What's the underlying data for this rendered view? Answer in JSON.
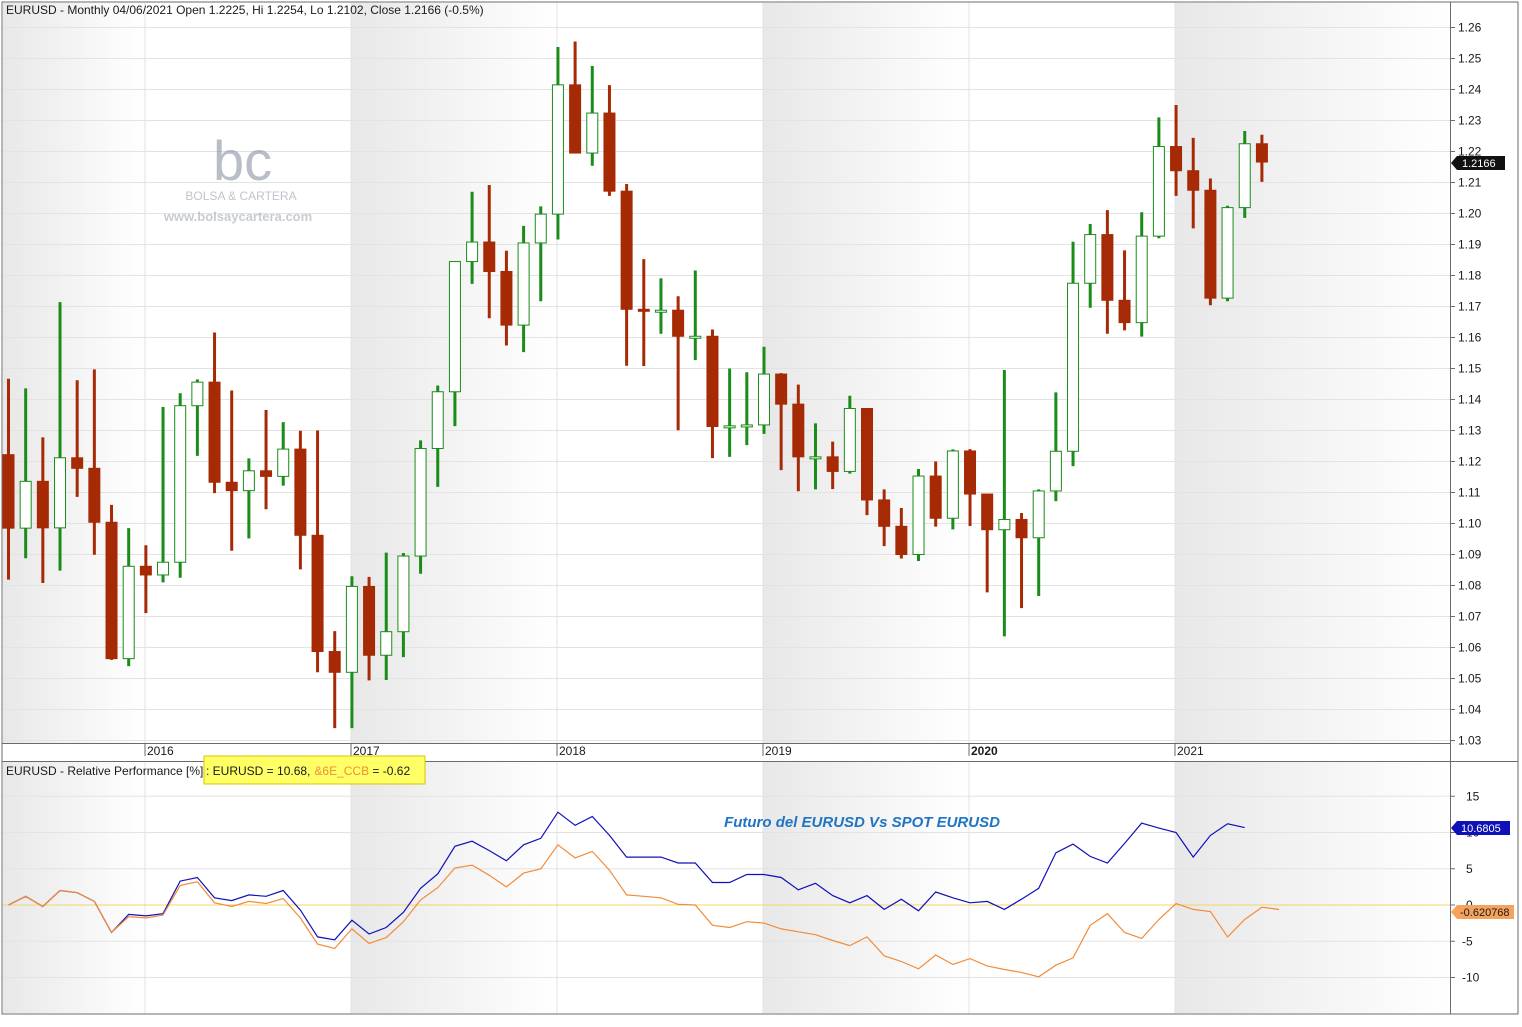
{
  "header": {
    "symbol": "EURUSD",
    "info_text": "EURUSD - Monthly 04/06/2021 Open 1.2225, Hi 1.2254, Lo 1.2102, Close 1.2166 (-0.5%)"
  },
  "watermark": {
    "logo_text": "bc",
    "brand": "BOLSA & CARTERA",
    "url": "www.bolsaycartera.com"
  },
  "colors": {
    "up_body": "#ffffff",
    "up_wick": "#1a8c1a",
    "down_body": "#a52a05",
    "series1": "#1010b8",
    "series2": "#f28c3a",
    "zero_line": "#f4d468",
    "legend_bg": "#ffff66"
  },
  "price_tag": "1.2166",
  "lower_panel": {
    "title": "EURUSD - Relative Performance [%]",
    "legend_prefix": ": EURUSD = 10.68,",
    "legend_item2": "&6E_CCB",
    "legend_suffix": " = -0.62",
    "annotation": "Futuro del EURUSD Vs SPOT EURUSD",
    "tag1": "10.6805",
    "tag2": "-0.620768"
  },
  "chart_data": [
    {
      "type": "candlestick",
      "title": "EURUSD - Monthly 04/06/2021 Open 1.2225, Hi 1.2254, Lo 1.2102, Close 1.2166 (-0.5%)",
      "x_labels": [
        "2016",
        "2017",
        "2018",
        "2019",
        "2020",
        "2021"
      ],
      "y_ticks": [
        "1.26",
        "1.25",
        "1.24",
        "1.23",
        "1.22",
        "1.21",
        "1.20",
        "1.19",
        "1.18",
        "1.17",
        "1.16",
        "1.15",
        "1.14",
        "1.13",
        "1.12",
        "1.11",
        "1.10",
        "1.09",
        "1.08",
        "1.07",
        "1.06",
        "1.05",
        "1.04",
        "1.03"
      ],
      "ylim": [
        1.026,
        1.263
      ],
      "x_start": "2015-04",
      "grid": true,
      "candles": [
        {
          "o": 1.1222,
          "h": 1.1467,
          "l": 1.0819,
          "c": 1.0985
        },
        {
          "o": 1.0985,
          "h": 1.1436,
          "l": 1.0888,
          "c": 1.1136
        },
        {
          "o": 1.1136,
          "h": 1.1278,
          "l": 1.0808,
          "c": 1.0986
        },
        {
          "o": 1.0986,
          "h": 1.1714,
          "l": 1.0848,
          "c": 1.1212
        },
        {
          "o": 1.1212,
          "h": 1.1462,
          "l": 1.1086,
          "c": 1.1178
        },
        {
          "o": 1.1178,
          "h": 1.1497,
          "l": 1.0899,
          "c": 1.1004
        },
        {
          "o": 1.1004,
          "h": 1.106,
          "l": 1.056,
          "c": 1.0564
        },
        {
          "o": 1.0564,
          "h": 1.0985,
          "l": 1.054,
          "c": 1.0862
        },
        {
          "o": 1.0862,
          "h": 1.093,
          "l": 1.0711,
          "c": 1.0834
        },
        {
          "o": 1.0834,
          "h": 1.1376,
          "l": 1.081,
          "c": 1.0875
        },
        {
          "o": 1.0875,
          "h": 1.142,
          "l": 1.0825,
          "c": 1.138
        },
        {
          "o": 1.138,
          "h": 1.1465,
          "l": 1.1218,
          "c": 1.1456
        },
        {
          "o": 1.1456,
          "h": 1.1616,
          "l": 1.1098,
          "c": 1.1133
        },
        {
          "o": 1.1133,
          "h": 1.1429,
          "l": 1.0912,
          "c": 1.1106
        },
        {
          "o": 1.1106,
          "h": 1.121,
          "l": 1.0952,
          "c": 1.117
        },
        {
          "o": 1.117,
          "h": 1.1366,
          "l": 1.1046,
          "c": 1.1152
        },
        {
          "o": 1.1152,
          "h": 1.1327,
          "l": 1.1122,
          "c": 1.124
        },
        {
          "o": 1.124,
          "h": 1.1299,
          "l": 1.0852,
          "c": 1.0962
        },
        {
          "o": 1.0962,
          "h": 1.13,
          "l": 1.052,
          "c": 1.0587
        },
        {
          "o": 1.0587,
          "h": 1.0653,
          "l": 1.034,
          "c": 1.052
        },
        {
          "o": 1.052,
          "h": 1.083,
          "l": 1.034,
          "c": 1.0797
        },
        {
          "o": 1.0797,
          "h": 1.0828,
          "l": 1.0494,
          "c": 1.0575
        },
        {
          "o": 1.0575,
          "h": 1.0906,
          "l": 1.0495,
          "c": 1.0651
        },
        {
          "o": 1.0651,
          "h": 1.0905,
          "l": 1.0569,
          "c": 1.0895
        },
        {
          "o": 1.0895,
          "h": 1.1268,
          "l": 1.0838,
          "c": 1.1242
        },
        {
          "o": 1.1242,
          "h": 1.1445,
          "l": 1.1118,
          "c": 1.1425
        },
        {
          "o": 1.1425,
          "h": 1.1829,
          "l": 1.1314,
          "c": 1.1845
        },
        {
          "o": 1.1845,
          "h": 1.207,
          "l": 1.1773,
          "c": 1.1908
        },
        {
          "o": 1.1908,
          "h": 1.2092,
          "l": 1.1662,
          "c": 1.1813
        },
        {
          "o": 1.1813,
          "h": 1.188,
          "l": 1.1574,
          "c": 1.164
        },
        {
          "o": 1.164,
          "h": 1.196,
          "l": 1.1553,
          "c": 1.1905
        },
        {
          "o": 1.1905,
          "h": 1.2023,
          "l": 1.1717,
          "c": 1.1998
        },
        {
          "o": 1.1998,
          "h": 1.2537,
          "l": 1.1916,
          "c": 1.2415
        },
        {
          "o": 1.2415,
          "h": 1.2555,
          "l": 1.2206,
          "c": 1.2195
        },
        {
          "o": 1.2195,
          "h": 1.2476,
          "l": 1.2154,
          "c": 1.2324
        },
        {
          "o": 1.2324,
          "h": 1.2414,
          "l": 1.2057,
          "c": 1.2072
        },
        {
          "o": 1.2072,
          "h": 1.2095,
          "l": 1.1509,
          "c": 1.1691
        },
        {
          "o": 1.1691,
          "h": 1.1853,
          "l": 1.1508,
          "c": 1.1685
        },
        {
          "o": 1.1685,
          "h": 1.1791,
          "l": 1.1612,
          "c": 1.1688
        },
        {
          "o": 1.1688,
          "h": 1.1733,
          "l": 1.1301,
          "c": 1.1604
        },
        {
          "o": 1.1604,
          "h": 1.1816,
          "l": 1.1527,
          "c": 1.1604
        },
        {
          "o": 1.1604,
          "h": 1.1626,
          "l": 1.1211,
          "c": 1.1313
        },
        {
          "o": 1.1313,
          "h": 1.15,
          "l": 1.1215,
          "c": 1.1315
        },
        {
          "o": 1.1315,
          "h": 1.1488,
          "l": 1.1253,
          "c": 1.1318
        },
        {
          "o": 1.1318,
          "h": 1.157,
          "l": 1.1289,
          "c": 1.1482
        },
        {
          "o": 1.1482,
          "h": 1.1485,
          "l": 1.1172,
          "c": 1.1385
        },
        {
          "o": 1.1385,
          "h": 1.1448,
          "l": 1.1104,
          "c": 1.1215
        },
        {
          "o": 1.1215,
          "h": 1.1323,
          "l": 1.111,
          "c": 1.1215
        },
        {
          "o": 1.1215,
          "h": 1.1264,
          "l": 1.1111,
          "c": 1.1168
        },
        {
          "o": 1.1168,
          "h": 1.1412,
          "l": 1.1161,
          "c": 1.1371
        },
        {
          "o": 1.1371,
          "h": 1.1371,
          "l": 1.1027,
          "c": 1.1076
        },
        {
          "o": 1.1076,
          "h": 1.111,
          "l": 1.0927,
          "c": 1.0991
        },
        {
          "o": 1.0991,
          "h": 1.105,
          "l": 1.0887,
          "c": 1.09
        },
        {
          "o": 1.09,
          "h": 1.1176,
          "l": 1.0879,
          "c": 1.1153
        },
        {
          "o": 1.1153,
          "h": 1.12,
          "l": 1.099,
          "c": 1.1017
        },
        {
          "o": 1.1017,
          "h": 1.1239,
          "l": 1.0981,
          "c": 1.1234
        },
        {
          "o": 1.1234,
          "h": 1.124,
          "l": 1.0992,
          "c": 1.1095
        },
        {
          "o": 1.1095,
          "h": 1.1095,
          "l": 1.0778,
          "c": 1.098
        },
        {
          "o": 1.098,
          "h": 1.1495,
          "l": 1.0636,
          "c": 1.1013
        },
        {
          "o": 1.1013,
          "h": 1.1034,
          "l": 1.0727,
          "c": 1.0954
        },
        {
          "o": 1.0954,
          "h": 1.111,
          "l": 1.0766,
          "c": 1.1105
        },
        {
          "o": 1.1105,
          "h": 1.1423,
          "l": 1.1072,
          "c": 1.1233
        },
        {
          "o": 1.1233,
          "h": 1.1909,
          "l": 1.1185,
          "c": 1.1775
        },
        {
          "o": 1.1775,
          "h": 1.1966,
          "l": 1.1696,
          "c": 1.1932
        },
        {
          "o": 1.1932,
          "h": 1.2011,
          "l": 1.1612,
          "c": 1.172
        },
        {
          "o": 1.172,
          "h": 1.1881,
          "l": 1.1623,
          "c": 1.1648
        },
        {
          "o": 1.1648,
          "h": 1.2004,
          "l": 1.1603,
          "c": 1.1927
        },
        {
          "o": 1.1927,
          "h": 1.231,
          "l": 1.192,
          "c": 1.2216
        },
        {
          "o": 1.2216,
          "h": 1.235,
          "l": 1.2057,
          "c": 1.2138
        },
        {
          "o": 1.2138,
          "h": 1.2244,
          "l": 1.1952,
          "c": 1.2075
        },
        {
          "o": 1.2075,
          "h": 1.2113,
          "l": 1.1704,
          "c": 1.1727
        },
        {
          "o": 1.1727,
          "h": 1.2025,
          "l": 1.1717,
          "c": 1.2019
        },
        {
          "o": 1.2019,
          "h": 1.2266,
          "l": 1.1986,
          "c": 1.2225
        },
        {
          "o": 1.2225,
          "h": 1.2254,
          "l": 1.2102,
          "c": 1.2166
        }
      ]
    },
    {
      "type": "line",
      "title": "EURUSD - Relative Performance [%]",
      "x_labels": [
        "2016",
        "2017",
        "2018",
        "2019",
        "2020",
        "2021"
      ],
      "y_ticks": [
        "15",
        "10",
        "5",
        "0",
        "-5",
        "-10"
      ],
      "ylim": [
        -13.5,
        18.5
      ],
      "grid": true,
      "series": [
        {
          "name": "EURUSD",
          "last_value": 10.6805,
          "values": [
            0,
            1.2,
            -0.2,
            2,
            1.7,
            0.5,
            -3.8,
            -1.3,
            -1.5,
            -1.2,
            3.3,
            3.8,
            1,
            0.6,
            1.4,
            1.2,
            2,
            -0.7,
            -4.4,
            -4.8,
            -2.1,
            -4,
            -3.1,
            -1,
            2.3,
            4.3,
            8.1,
            8.8,
            7.5,
            6.1,
            8.3,
            9.2,
            12.8,
            11,
            12.2,
            9.6,
            6.6,
            6.6,
            6.6,
            5.8,
            5.8,
            3.1,
            3.1,
            4.2,
            4.2,
            3.8,
            2.1,
            3,
            1.3,
            0.3,
            1.3,
            -0.6,
            0.8,
            -0.8,
            1.8,
            1,
            0.3,
            0.5,
            -0.6,
            0.8,
            2.3,
            7.2,
            8.4,
            6.7,
            5.8,
            8.5,
            11.3,
            10.6,
            10,
            6.6,
            9.6,
            11.2,
            10.68
          ]
        },
        {
          "name": "&6E_CCB",
          "last_value": -0.620768,
          "values": [
            0,
            1.2,
            -0.2,
            2,
            1.7,
            0.5,
            -3.8,
            -1.6,
            -1.8,
            -1.4,
            2.7,
            3.2,
            0.3,
            -0.2,
            0.5,
            0.2,
            0.9,
            -1.8,
            -5.4,
            -6,
            -3.3,
            -5.3,
            -4.5,
            -2.3,
            0.7,
            2.4,
            5.1,
            5.5,
            4.1,
            2.5,
            4.4,
            5,
            8.3,
            6.5,
            7.4,
            4.8,
            1.4,
            1.2,
            1,
            0.1,
            0,
            -2.8,
            -3.1,
            -2.3,
            -2.5,
            -3.3,
            -3.7,
            -4.1,
            -4.9,
            -5.6,
            -4.4,
            -7,
            -7.8,
            -8.8,
            -6.9,
            -8.2,
            -7.4,
            -8.4,
            -8.9,
            -9.3,
            -9.9,
            -8.3,
            -7.3,
            -2.8,
            -1.2,
            -3.8,
            -4.6,
            -2,
            0.2,
            -0.6,
            -0.9,
            -4.4,
            -2,
            -0.3,
            -0.62
          ]
        }
      ]
    }
  ]
}
